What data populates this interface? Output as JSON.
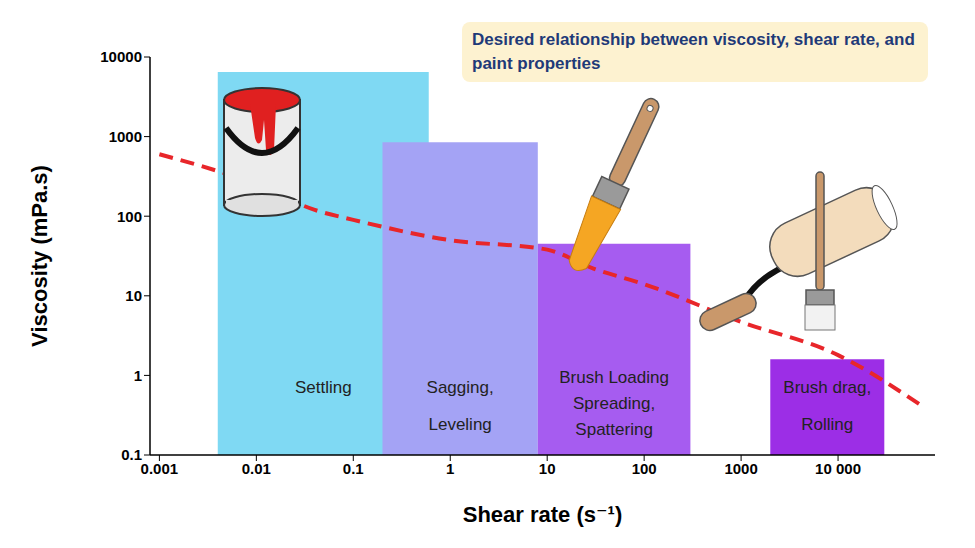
{
  "chart_data": {
    "type": "line",
    "title": "Desired relationship between viscosity, shear rate, and paint properties",
    "x_label": "Shear rate (s⁻¹)",
    "y_label": "Viscosity (mPa.s)",
    "log": true,
    "grid": false,
    "x": [
      0.001,
      0.01,
      0.04,
      0.1,
      1,
      10,
      30,
      100,
      1000,
      10000,
      70000
    ],
    "series": [
      {
        "color": "#e8262a",
        "line_style": "dashed",
        "values": [
          600,
          250,
          120,
          90,
          50,
          38,
          22,
          14,
          4.7,
          1.8,
          0.43
        ]
      }
    ],
    "xlim": [
      0.0008,
      100000
    ],
    "xticks": [
      0.001,
      0.01,
      0.1,
      1,
      10,
      100,
      1000,
      {
        "value": 10000,
        "label": "10 000"
      }
    ],
    "ylim": [
      0.1,
      10000
    ],
    "yticks": [
      0.1,
      1,
      10,
      100,
      1000,
      10000
    ],
    "regions": [
      {
        "label": [
          "Settling"
        ],
        "x": [
          0.004,
          0.6
        ],
        "top": 6500,
        "color": "#7fd9f3"
      },
      {
        "label": [
          "Sagging,",
          "Leveling"
        ],
        "x": [
          0.2,
          8
        ],
        "top": 850,
        "color": "#a4a3f5"
      },
      {
        "label": [
          "Brush Loading",
          "Spreading,",
          "Spattering"
        ],
        "x": [
          8,
          300
        ],
        "top": 45,
        "color": "#a65cf0"
      },
      {
        "label": [
          "Brush drag,",
          "Rolling"
        ],
        "x": [
          2000,
          30000
        ],
        "top": 1.6,
        "color": "#9c2ee6"
      }
    ]
  }
}
